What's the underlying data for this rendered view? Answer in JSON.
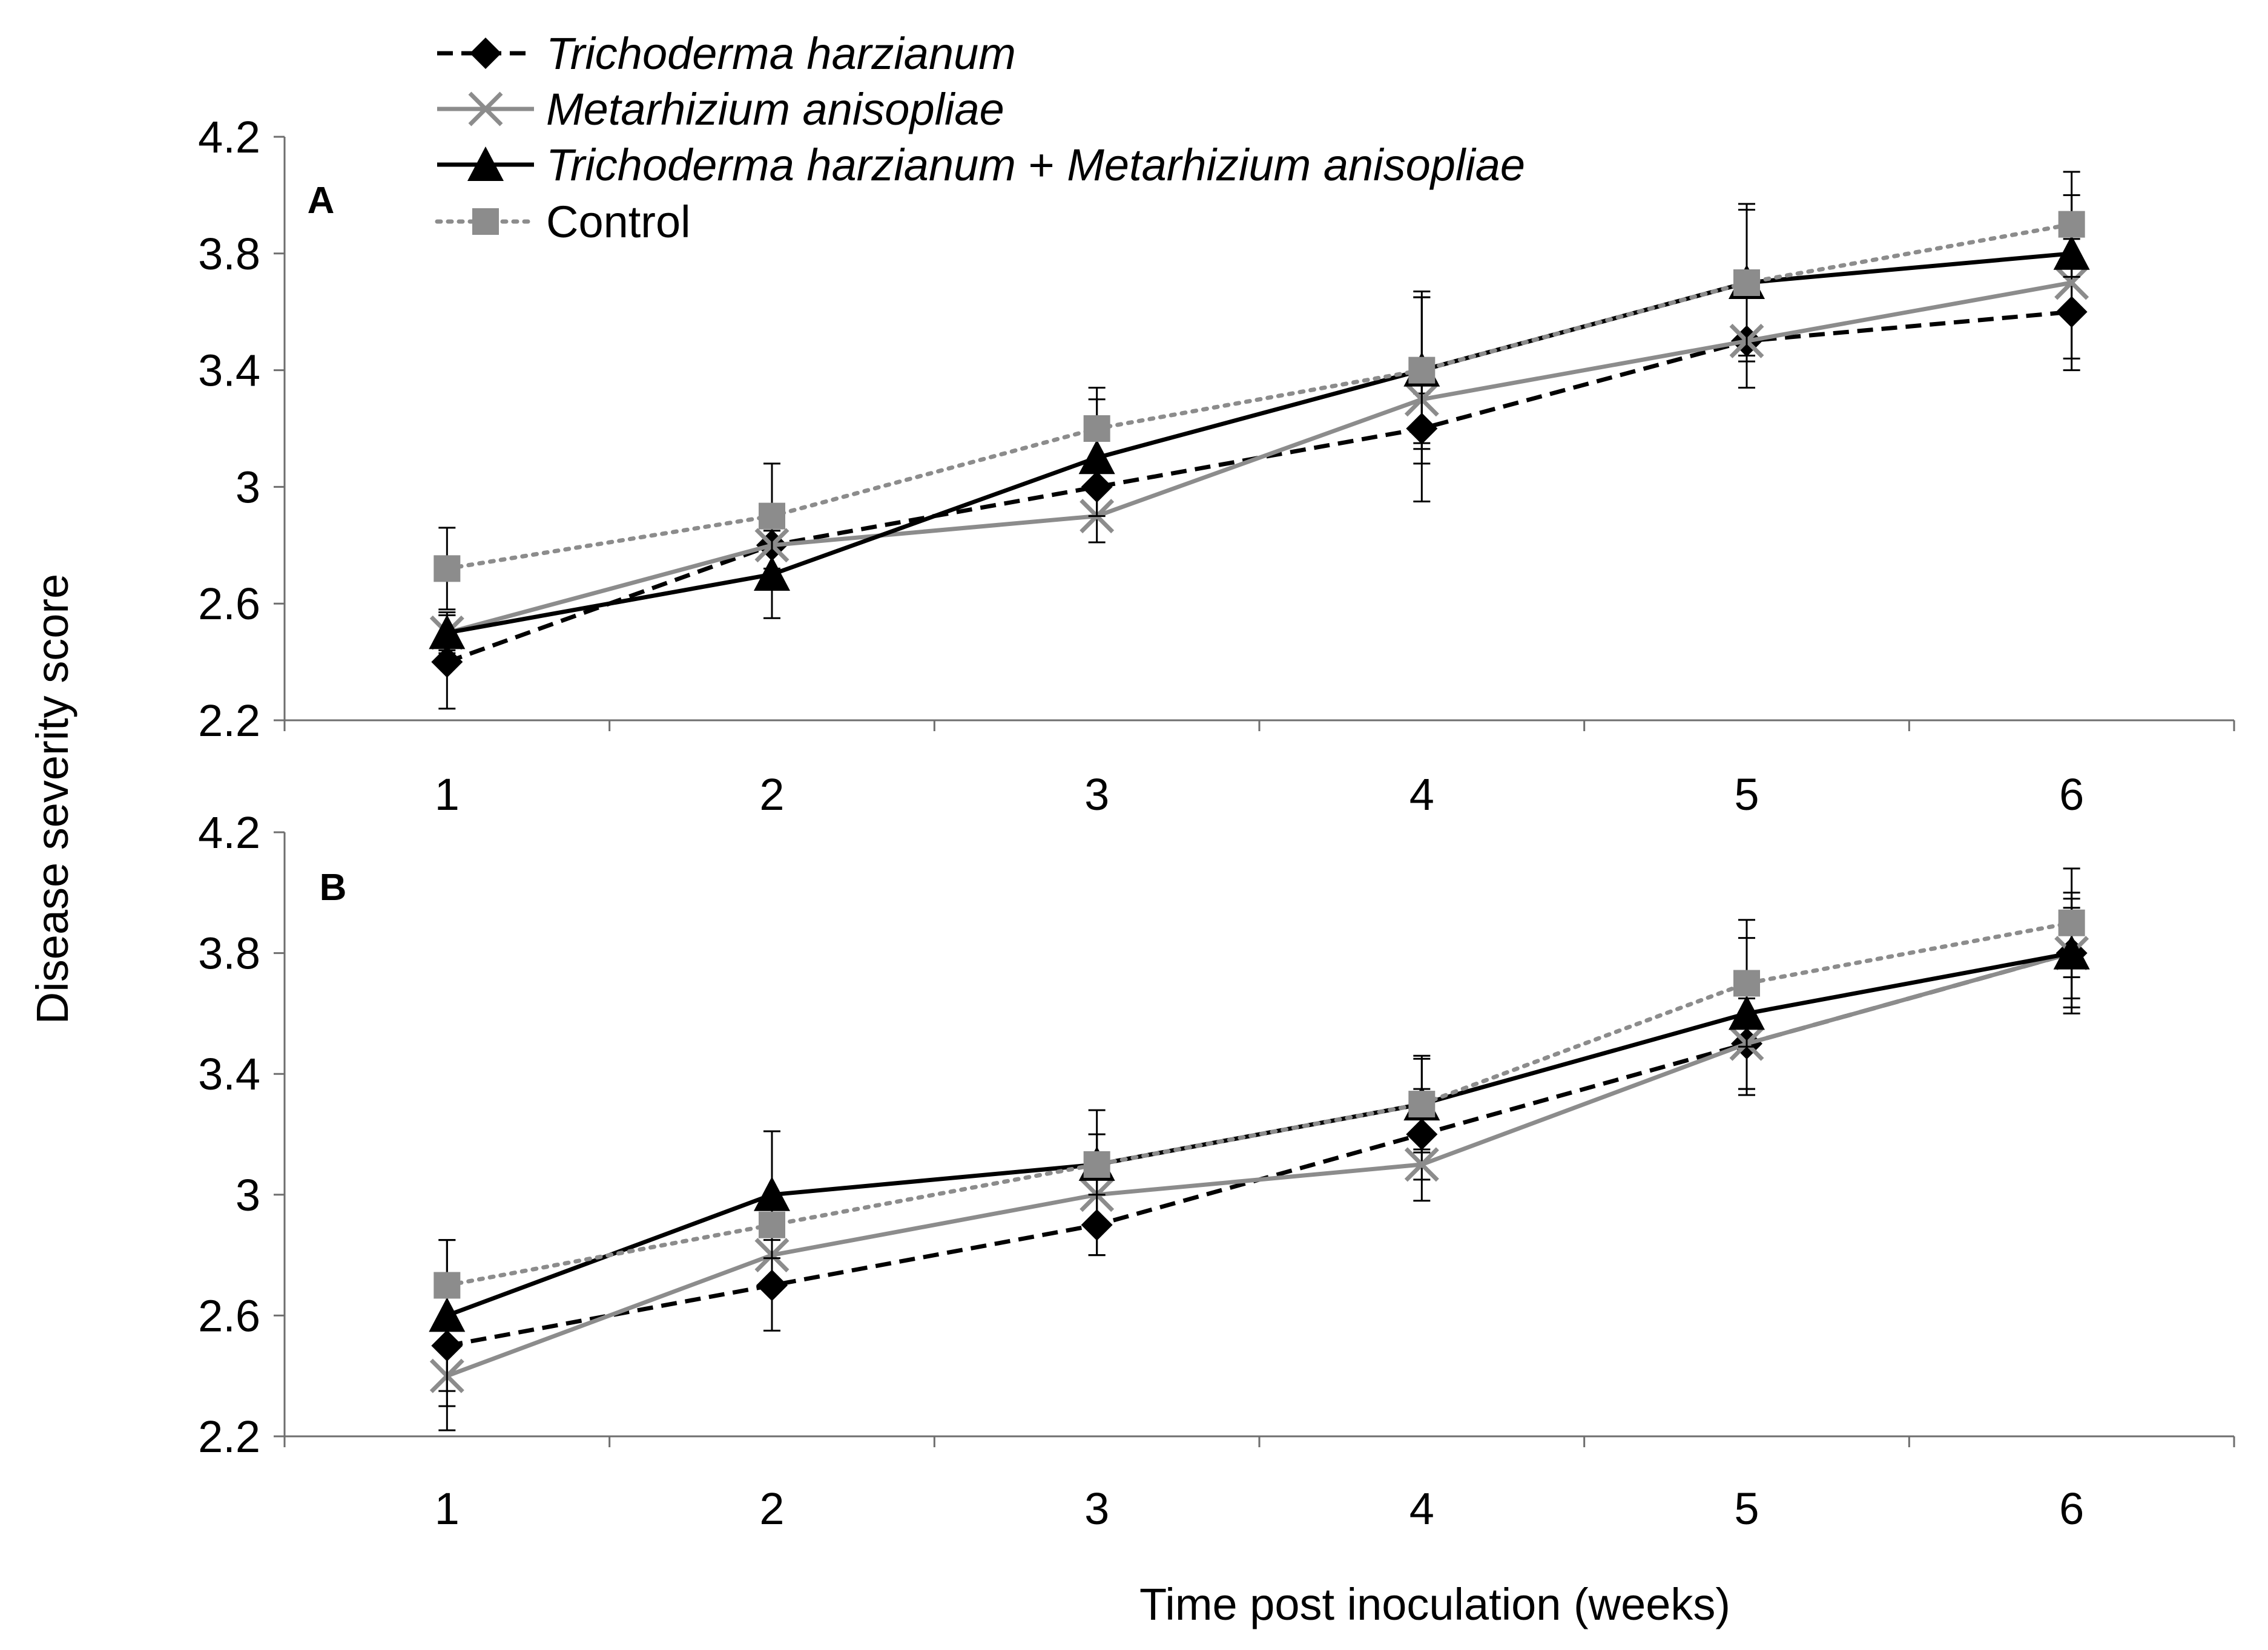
{
  "chart_data": {
    "type": "line",
    "ylabel": "Disease severity score",
    "xlabel": "Time post inoculation (weeks)",
    "x": [
      1,
      2,
      3,
      4,
      5,
      6
    ],
    "x_tick_labels": [
      "1",
      "2",
      "3",
      "4",
      "5",
      "6"
    ],
    "ylim": [
      2.2,
      4.2
    ],
    "y_ticks": [
      2.2,
      2.6,
      3,
      3.4,
      3.8,
      4.2
    ],
    "y_tick_labels": [
      "2.2",
      "2.6",
      "3",
      "3.4",
      "3.8",
      "4.2"
    ],
    "grid": false,
    "legend_position": "top-left",
    "legend": [
      {
        "name": "Trichoderma harzianum",
        "italic": true,
        "style": "dashed",
        "marker": "diamond",
        "color": "#000000"
      },
      {
        "name": "Metarhizium anisopliae",
        "italic": true,
        "style": "solid",
        "marker": "x",
        "color": "#8c8c8c"
      },
      {
        "name_parts": [
          "Trichoderma harzianum",
          " + ",
          "Metarhizium anisopliae"
        ],
        "name": "Trichoderma harzianum + Metarhizium anisopliae",
        "italic": true,
        "style": "solid",
        "marker": "triangle",
        "color": "#000000"
      },
      {
        "name": "Control",
        "italic": false,
        "style": "dotted",
        "marker": "square",
        "color": "#8c8c8c"
      }
    ],
    "panels": [
      {
        "label": "A",
        "series": [
          {
            "name": "Trichoderma harzianum",
            "values": [
              2.4,
              2.8,
              3.0,
              3.2,
              3.5,
              3.6
            ],
            "error": [
              0.16,
              0.0,
              0.0,
              0.12,
              0.16,
              0.16
            ]
          },
          {
            "name": "Metarhizium anisopliae",
            "values": [
              2.5,
              2.8,
              2.9,
              3.3,
              3.5,
              3.7
            ],
            "error": [
              0.07,
              0.0,
              0.09,
              0.35,
              0.0,
              0.3
            ]
          },
          {
            "name": "Trichoderma harzianum + Metarhizium anisopliae",
            "values": [
              2.5,
              2.7,
              3.1,
              3.4,
              3.7,
              3.8
            ],
            "error": [
              0.06,
              0.15,
              0.2,
              0.25,
              0.25,
              0.05
            ]
          },
          {
            "name": "Control",
            "values": [
              2.72,
              2.9,
              3.2,
              3.4,
              3.7,
              3.9
            ],
            "error": [
              0.14,
              0.18,
              0.14,
              0.27,
              0.27,
              0.18
            ]
          }
        ]
      },
      {
        "label": "B",
        "series": [
          {
            "name": "Trichoderma harzianum",
            "values": [
              2.5,
              2.7,
              2.9,
              3.2,
              3.5,
              3.8
            ],
            "error": [
              0.2,
              0.15,
              0.1,
              0.15,
              0.17,
              0.2
            ]
          },
          {
            "name": "Metarhizium anisopliae",
            "values": [
              2.4,
              2.8,
              3.0,
              3.1,
              3.5,
              3.8
            ],
            "error": [
              0.18,
              0.0,
              0.2,
              0.12,
              0.15,
              0.18
            ]
          },
          {
            "name": "Trichoderma harzianum + Metarhizium anisopliae",
            "values": [
              2.6,
              3.0,
              3.1,
              3.3,
              3.6,
              3.8
            ],
            "error": [
              0.25,
              0.21,
              0.1,
              0.16,
              0.25,
              0.15
            ]
          },
          {
            "name": "Control",
            "values": [
              2.7,
              2.9,
              3.1,
              3.3,
              3.7,
              3.9
            ],
            "error": [
              0.15,
              0.0,
              0.18,
              0.15,
              0.21,
              0.18
            ]
          }
        ]
      }
    ]
  }
}
